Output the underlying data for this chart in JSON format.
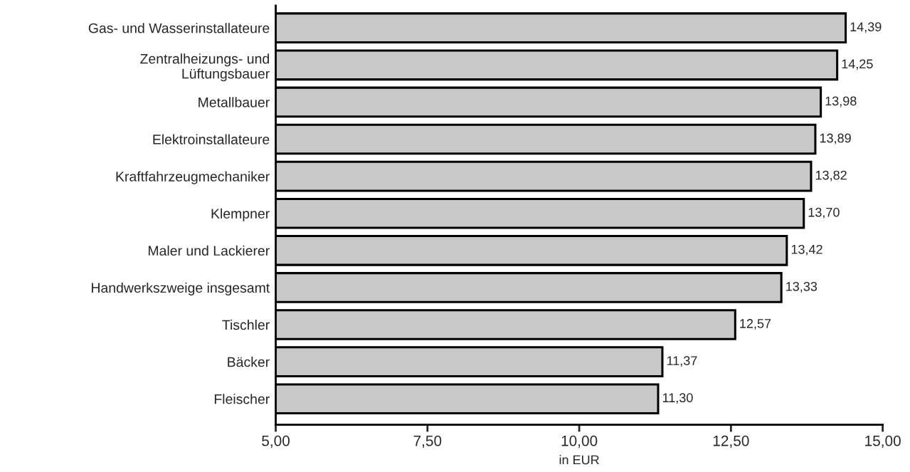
{
  "chart_data": {
    "type": "bar",
    "orientation": "horizontal",
    "xlabel": "in EUR",
    "categories": [
      "Gas- und Wasserinstallateure",
      "Zentralheizungs- und\nLüftungsbauer",
      "Metallbauer",
      "Elektroinstallateure",
      "Kraftfahrzeugmechaniker",
      "Klempner",
      "Maler und Lackierer",
      "Handwerkszweige insgesamt",
      "Tischler",
      "Bäcker",
      "Fleischer"
    ],
    "values": [
      14.39,
      14.25,
      13.98,
      13.89,
      13.82,
      13.7,
      13.42,
      13.33,
      12.57,
      11.37,
      11.3
    ],
    "value_labels": [
      "14,39",
      "14,25",
      "13,98",
      "13,89",
      "13,82",
      "13,70",
      "13,42",
      "13,33",
      "12,57",
      "11,37",
      "11,30"
    ],
    "color": "#c8c8c8",
    "xlim": [
      5,
      15
    ],
    "xticks": [
      {
        "value": 5,
        "label": "5,00"
      },
      {
        "value": 7.5,
        "label": "7,50"
      },
      {
        "value": 10,
        "label": "10,00"
      },
      {
        "value": 12.5,
        "label": "12,50"
      },
      {
        "value": 15,
        "label": "15,00"
      }
    ],
    "grid": false,
    "legend": false
  }
}
